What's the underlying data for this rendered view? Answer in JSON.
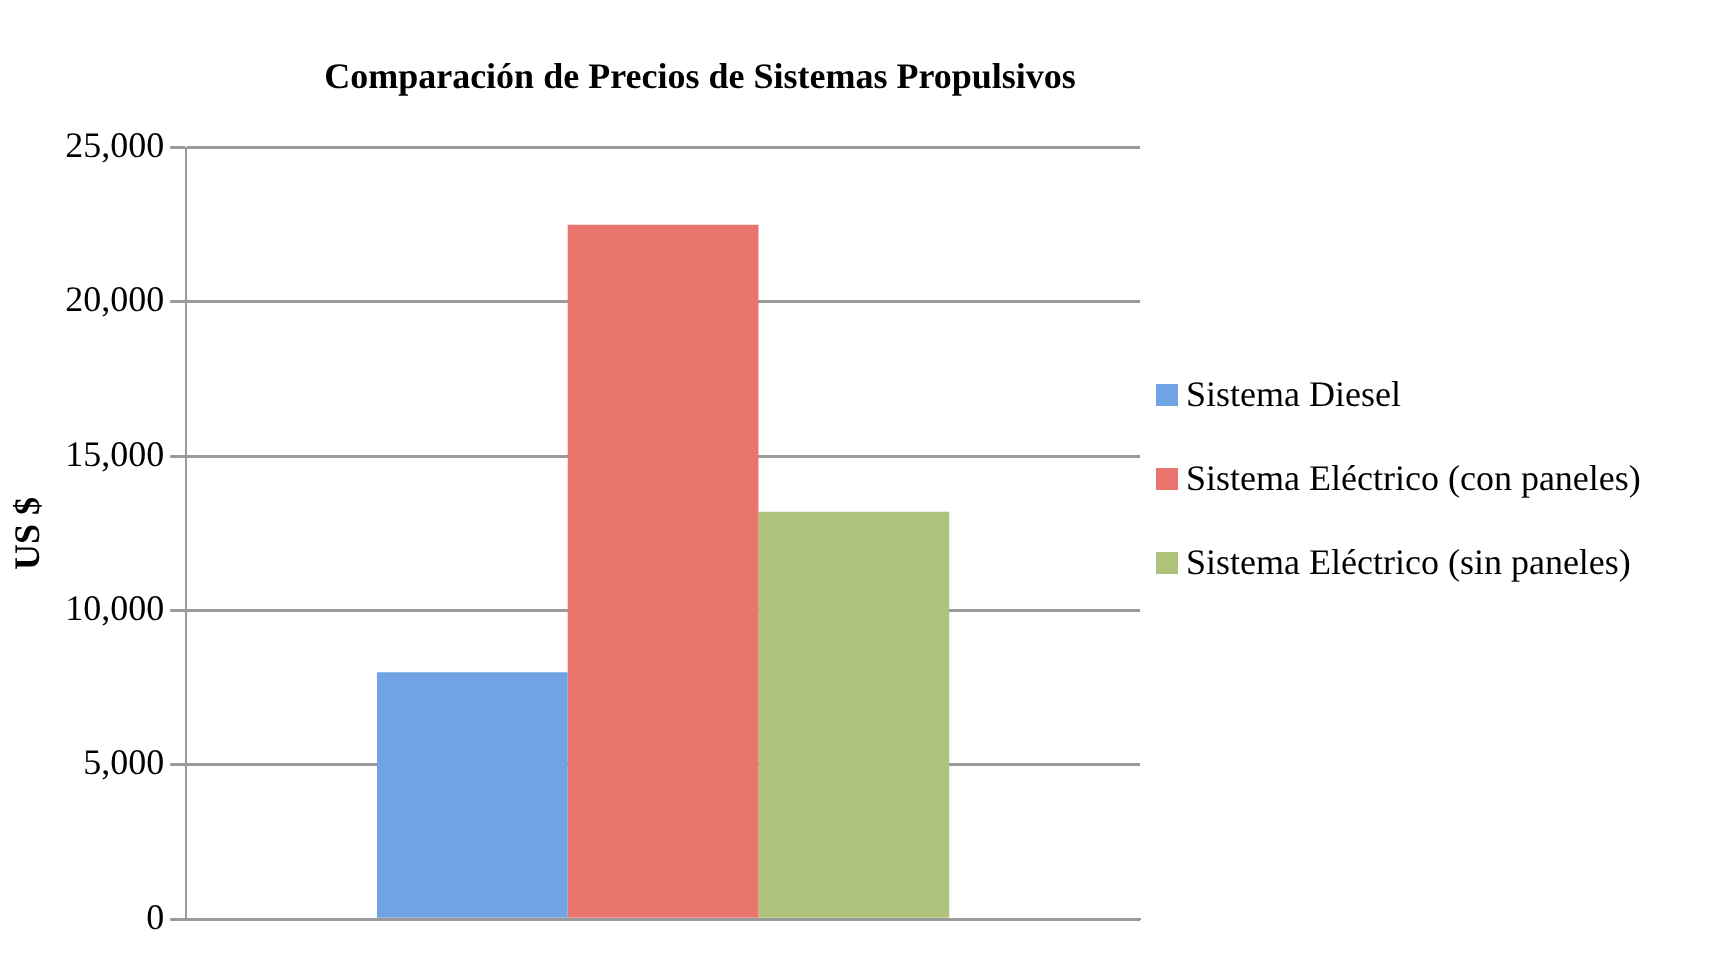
{
  "chart_data": {
    "type": "bar",
    "title": "Comparación de Precios de Sistemas Propulsivos",
    "ylabel": "US $",
    "categories": [
      null
    ],
    "series": [
      {
        "name": "Sistema Diesel",
        "color": "#6fa3e3",
        "values": [
          8000
        ]
      },
      {
        "name": "Sistema Eléctrico (con paneles)",
        "color": "#e9756e",
        "values": [
          22500
        ]
      },
      {
        "name": "Sistema Eléctrico (sin paneles)",
        "color": "#afc27c",
        "values": [
          13200
        ]
      }
    ],
    "ylim": [
      0,
      25000
    ],
    "yticks": [
      0,
      {
        "value": 5000,
        "label": "5,000"
      },
      {
        "value": 10000,
        "label": "10,000"
      },
      {
        "value": 15000,
        "label": "15,000"
      },
      {
        "value": 20000,
        "label": "20,000"
      },
      {
        "value": 25000,
        "label": "25,000"
      }
    ],
    "grid": "y",
    "legend": "right"
  }
}
